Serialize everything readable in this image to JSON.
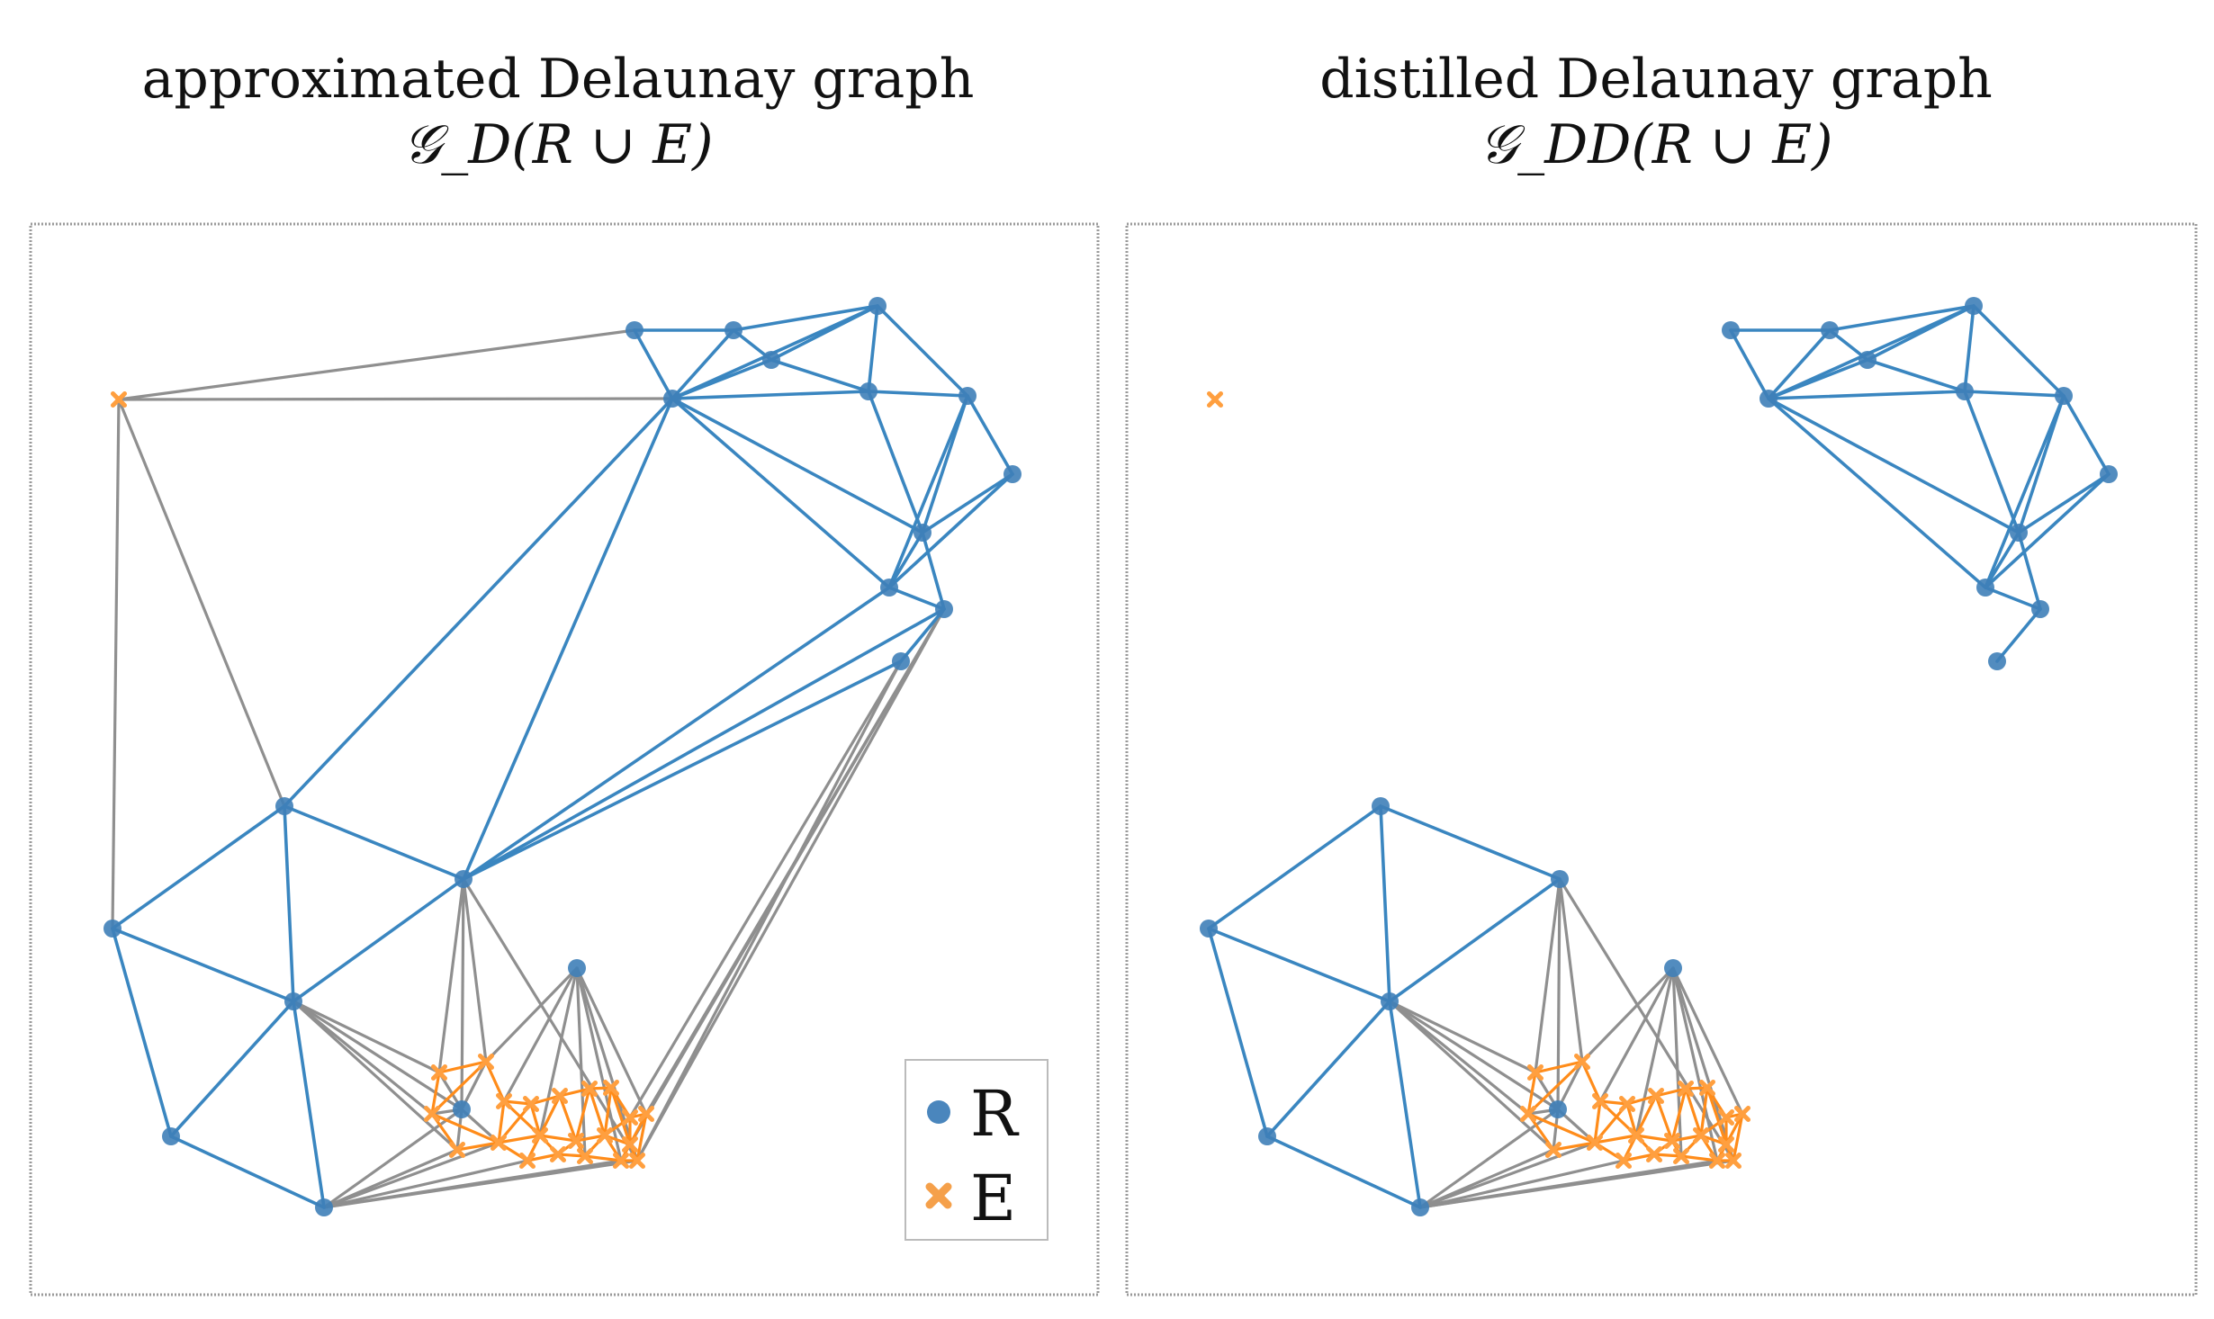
{
  "panels": [
    {
      "id": "left",
      "title_line1": "approximated Delaunay graph",
      "title_line2": "𝒢_D(R ∪ E)"
    },
    {
      "id": "right",
      "title_line1": "distilled Delaunay graph",
      "title_line2": "𝒢_DD(R ∪ E)"
    }
  ],
  "legend": [
    {
      "label": "R",
      "marker": "circle",
      "color": "#4a86bd"
    },
    {
      "label": "E",
      "marker": "x",
      "color": "#f5a04a"
    }
  ],
  "colors": {
    "r_node": "#3f7fb8",
    "e_node": "#ff9f3f",
    "r_edge": "#3a86c0",
    "e_edge": "#ff8c1a",
    "mixed_edge": "#8f8f8f"
  }
}
